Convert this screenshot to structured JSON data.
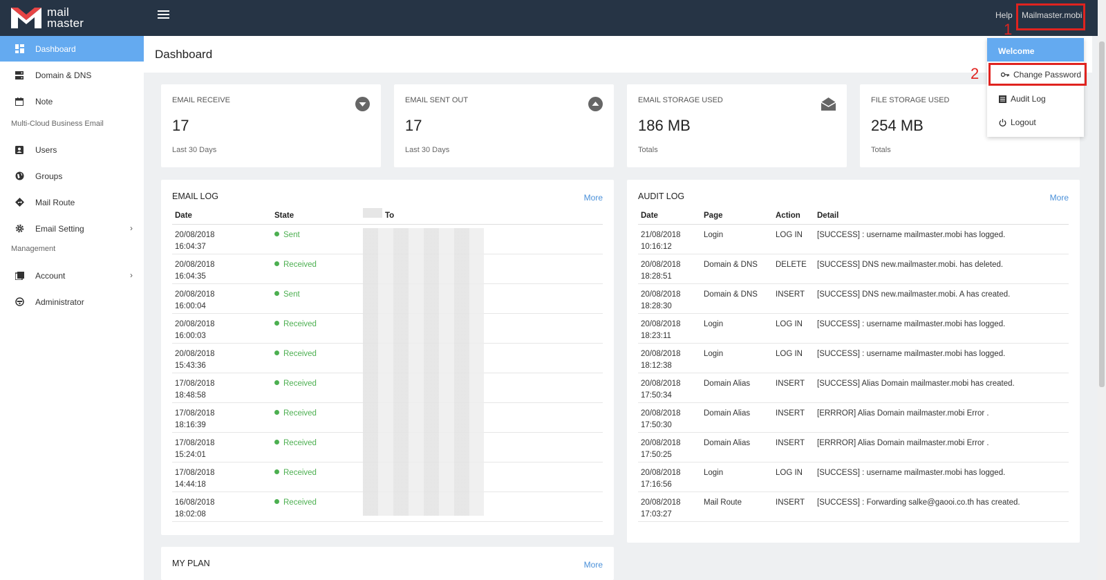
{
  "app": {
    "logo_line1": "mail",
    "logo_line2": "master"
  },
  "topbar": {
    "help": "Help",
    "user": "Mailmaster.mobi"
  },
  "annotations": {
    "num1": "1",
    "num2": "2"
  },
  "sidebar": {
    "items": [
      {
        "label": "Dashboard",
        "icon": "dashboard-icon"
      },
      {
        "label": "Domain & DNS",
        "icon": "server-icon"
      },
      {
        "label": "Note",
        "icon": "calendar-icon"
      },
      {
        "label": "Users",
        "icon": "user-card-icon"
      },
      {
        "label": "Groups",
        "icon": "globe-icon"
      },
      {
        "label": "Mail Route",
        "icon": "route-icon"
      },
      {
        "label": "Email Setting",
        "icon": "gear-icon"
      },
      {
        "label": "Account",
        "icon": "book-icon"
      },
      {
        "label": "Administrator",
        "icon": "admin-icon"
      }
    ],
    "section1": "Multi-Cloud Business Email",
    "section2": "Management"
  },
  "page": {
    "title": "Dashboard"
  },
  "stats": [
    {
      "label": "EMAIL RECEIVE",
      "value": "17",
      "sub": "Last 30 Days",
      "icon": "arrow-down-circle-icon"
    },
    {
      "label": "EMAIL SENT OUT",
      "value": "17",
      "sub": "Last 30 Days",
      "icon": "arrow-up-circle-icon"
    },
    {
      "label": "EMAIL STORAGE USED",
      "value": "186 MB",
      "sub": "Totals",
      "icon": "envelope-open-icon"
    },
    {
      "label": "FILE STORAGE USED",
      "value": "254 MB",
      "sub": "Totals",
      "icon": "file-icon"
    }
  ],
  "email_log": {
    "title": "EMAIL LOG",
    "more": "More",
    "headers": [
      "Date",
      "State",
      "To"
    ],
    "rows": [
      {
        "date": "20/08/2018",
        "time": "16:04:37",
        "state": "Sent"
      },
      {
        "date": "20/08/2018",
        "time": "16:04:35",
        "state": "Received"
      },
      {
        "date": "20/08/2018",
        "time": "16:00:04",
        "state": "Sent"
      },
      {
        "date": "20/08/2018",
        "time": "16:00:03",
        "state": "Received"
      },
      {
        "date": "20/08/2018",
        "time": "15:43:36",
        "state": "Received"
      },
      {
        "date": "17/08/2018",
        "time": "18:48:58",
        "state": "Received"
      },
      {
        "date": "17/08/2018",
        "time": "18:16:39",
        "state": "Received"
      },
      {
        "date": "17/08/2018",
        "time": "15:24:01",
        "state": "Received"
      },
      {
        "date": "17/08/2018",
        "time": "14:44:18",
        "state": "Received"
      },
      {
        "date": "16/08/2018",
        "time": "18:02:08",
        "state": "Received"
      }
    ]
  },
  "audit_log": {
    "title": "AUDIT LOG",
    "more": "More",
    "headers": [
      "Date",
      "Page",
      "Action",
      "Detail"
    ],
    "rows": [
      {
        "date": "21/08/2018",
        "time": "10:16:12",
        "page": "Login",
        "action": "LOG IN",
        "detail": "[SUCCESS] : username mailmaster.mobi has logged."
      },
      {
        "date": "20/08/2018",
        "time": "18:28:51",
        "page": "Domain & DNS",
        "action": "DELETE",
        "detail": "[SUCCESS] DNS new.mailmaster.mobi. has deleted."
      },
      {
        "date": "20/08/2018",
        "time": "18:28:30",
        "page": "Domain & DNS",
        "action": "INSERT",
        "detail": "[SUCCESS] DNS new.mailmaster.mobi. A has created."
      },
      {
        "date": "20/08/2018",
        "time": "18:23:11",
        "page": "Login",
        "action": "LOG IN",
        "detail": "[SUCCESS] : username mailmaster.mobi has logged."
      },
      {
        "date": "20/08/2018",
        "time": "18:12:38",
        "page": "Login",
        "action": "LOG IN",
        "detail": "[SUCCESS] : username mailmaster.mobi has logged."
      },
      {
        "date": "20/08/2018",
        "time": "17:50:34",
        "page": "Domain Alias",
        "action": "INSERT",
        "detail": "[SUCCESS] Alias Domain mailmaster.mobi has created."
      },
      {
        "date": "20/08/2018",
        "time": "17:50:30",
        "page": "Domain Alias",
        "action": "INSERT",
        "detail": "[ERRROR] Alias Domain mailmaster.mobi Error ."
      },
      {
        "date": "20/08/2018",
        "time": "17:50:25",
        "page": "Domain Alias",
        "action": "INSERT",
        "detail": "[ERRROR] Alias Domain mailmaster.mobi Error ."
      },
      {
        "date": "20/08/2018",
        "time": "17:16:56",
        "page": "Login",
        "action": "LOG IN",
        "detail": "[SUCCESS] : username mailmaster.mobi has logged."
      },
      {
        "date": "20/08/2018",
        "time": "17:03:27",
        "page": "Mail Route",
        "action": "INSERT",
        "detail": "[SUCCESS] : Forwarding salke@gaooi.co.th has created."
      }
    ]
  },
  "my_plan": {
    "title": "MY PLAN",
    "more": "More"
  },
  "dropdown": {
    "header": "Welcome",
    "items": [
      {
        "label": "Change Password",
        "icon": "key-icon"
      },
      {
        "label": "Audit Log",
        "icon": "list-icon"
      },
      {
        "label": "Logout",
        "icon": "power-icon"
      }
    ]
  },
  "colors": {
    "topbar": "#263445",
    "accent": "#64aaf0",
    "success": "#4caf50",
    "annotation": "#e0231f",
    "link": "#4a90d9"
  }
}
